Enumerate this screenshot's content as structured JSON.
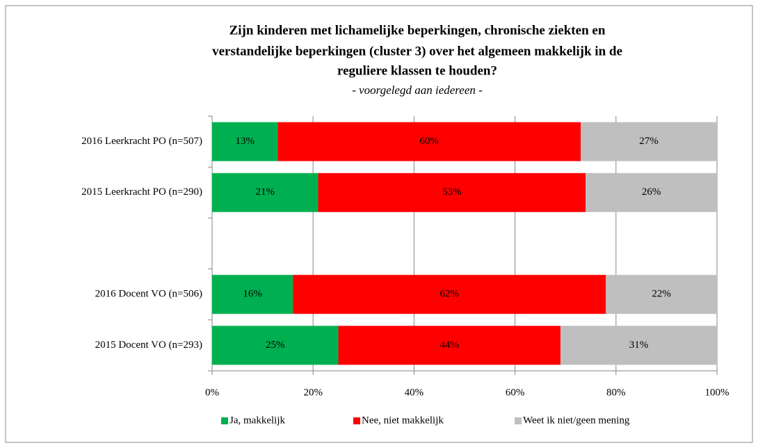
{
  "chart_data": {
    "type": "stacked-bar-horizontal",
    "title": [
      "Zijn kinderen met lichamelijke beperkingen, chronische ziekten en",
      "verstandelijke beperkingen (cluster 3) over het algemeen makkelijk in de",
      "reguliere klassen te houden?"
    ],
    "subtitle": "- voorgelegd aan iedereen -",
    "categories": [
      "2016 Leerkracht PO (n=507)",
      "2015 Leerkracht PO (n=290)",
      null,
      "2016 Docent VO (n=506)",
      "2015 Docent VO (n=293)"
    ],
    "series": [
      {
        "name": "Ja, makkelijk",
        "color": "#00b050",
        "values": [
          13,
          21,
          null,
          16,
          25
        ],
        "value_labels": [
          "13%",
          "21%",
          null,
          "16%",
          "25%"
        ]
      },
      {
        "name": "Nee, niet makkelijk",
        "color": "#ff0000",
        "values": [
          60,
          53,
          null,
          62,
          44
        ],
        "value_labels": [
          "60%",
          "53%",
          null,
          "62%",
          "44%"
        ]
      },
      {
        "name": "Weet ik niet/geen mening",
        "color": "#bfbfbf",
        "values": [
          27,
          26,
          null,
          22,
          31
        ],
        "value_labels": [
          "27%",
          "26%",
          null,
          "22%",
          "31%"
        ]
      }
    ],
    "xlim": [
      0,
      100
    ],
    "xticks": [
      {
        "value": 0,
        "label": "0%"
      },
      {
        "value": 20,
        "label": "20%"
      },
      {
        "value": 40,
        "label": "40%"
      },
      {
        "value": 60,
        "label": "60%"
      },
      {
        "value": 80,
        "label": "80%"
      },
      {
        "value": 100,
        "label": "100%"
      }
    ],
    "grid": true,
    "legend": "bottom"
  }
}
